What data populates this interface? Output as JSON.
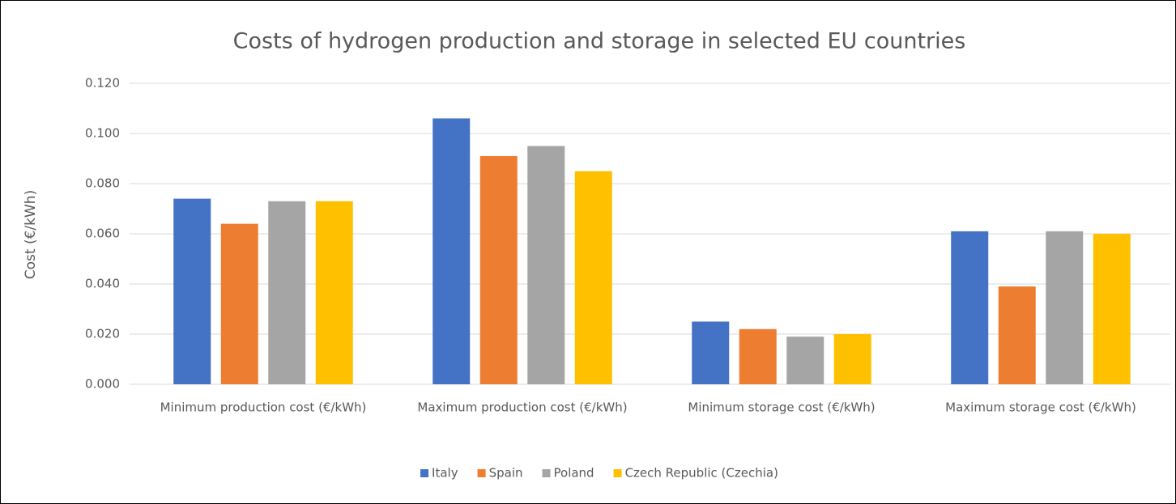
{
  "chart_data": {
    "type": "bar",
    "title": "Costs of hydrogen production and storage in selected EU countries",
    "y_label": "Cost (€/kWh)",
    "categories": [
      "Minimum production cost (€/kWh)",
      "Maximum production cost (€/kWh)",
      "Minimum storage cost (€/kWh)",
      "Maximum storage cost (€/kWh)"
    ],
    "series": [
      {
        "name": "Italy",
        "color": "#4472c4",
        "values": [
          0.074,
          0.106,
          0.025,
          0.061
        ]
      },
      {
        "name": "Spain",
        "color": "#ed7d31",
        "values": [
          0.064,
          0.091,
          0.022,
          0.039
        ]
      },
      {
        "name": "Poland",
        "color": "#a5a5a5",
        "values": [
          0.073,
          0.095,
          0.019,
          0.061
        ]
      },
      {
        "name": "Czech Republic (Czechia)",
        "color": "#ffc000",
        "values": [
          0.073,
          0.085,
          0.02,
          0.06
        ]
      }
    ],
    "ylim": [
      0,
      0.12
    ],
    "yticks": [
      {
        "value": 0,
        "label": "0.000"
      },
      {
        "value": 0.02,
        "label": "0.020"
      },
      {
        "value": 0.04,
        "label": "0.040"
      },
      {
        "value": 0.06,
        "label": "0.060"
      },
      {
        "value": 0.08,
        "label": "0.080"
      },
      {
        "value": 0.1,
        "label": "0.100"
      },
      {
        "value": 0.12,
        "label": "0.120"
      }
    ],
    "grid": true,
    "legend": "bottom"
  }
}
